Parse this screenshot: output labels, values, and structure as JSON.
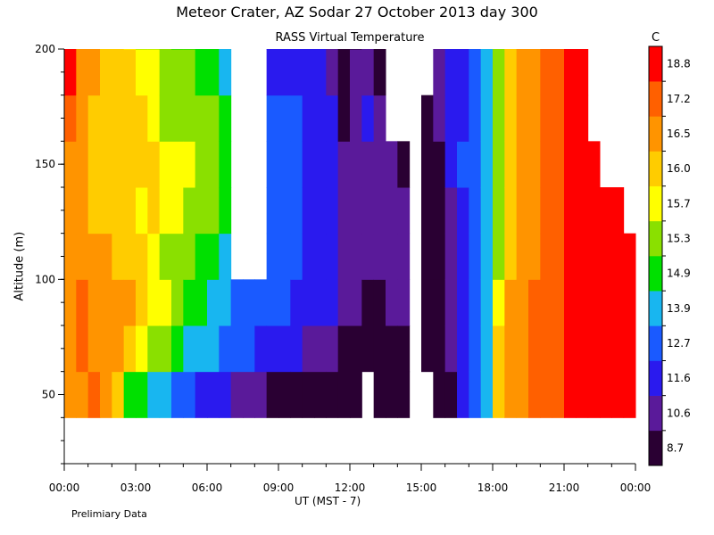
{
  "chart_data": {
    "type": "heatmap",
    "title": "Meteor Crater, AZ  Sodar  27 October 2013  day 300",
    "subtitle": "RASS Virtual Temperature",
    "xlabel": "UT  (MST - 7)",
    "ylabel": "Altitude (m)",
    "note": "Prelimiary Data",
    "colorbar_unit": "C",
    "xlim": [
      0,
      24
    ],
    "ylim": [
      20,
      200
    ],
    "x_ticks": [
      "00:00",
      "03:00",
      "06:00",
      "09:00",
      "12:00",
      "15:00",
      "18:00",
      "21:00",
      "00:00"
    ],
    "y_ticks": [
      50,
      100,
      150,
      200
    ],
    "colorbar": {
      "levels": [
        "8.7",
        "10.6",
        "11.6",
        "12.7",
        "13.9",
        "14.9",
        "15.3",
        "15.7",
        "16.0",
        "16.5",
        "17.2",
        "18.8"
      ],
      "colors": [
        "#2a0033",
        "#5a1a9a",
        "#2a1aee",
        "#1a5aff",
        "#18b6f0",
        "#00e000",
        "#8ae000",
        "#ffff00",
        "#ffcc00",
        "#ff9400",
        "#ff6000",
        "#ff0000"
      ]
    },
    "altitudes": [
      40,
      60,
      80,
      100,
      120,
      140,
      160,
      180,
      200
    ],
    "columns": [
      {
        "t": 0.0,
        "v": [
          17.0,
          17.0,
          17.0,
          16.8,
          16.8,
          16.8,
          17.2,
          18.8,
          18.8
        ]
      },
      {
        "t": 0.5,
        "v": [
          17.0,
          17.2,
          17.2,
          17.0,
          16.8,
          16.5,
          16.5,
          17.0,
          null
        ]
      },
      {
        "t": 1.0,
        "v": [
          17.2,
          17.0,
          16.8,
          16.5,
          16.3,
          16.2,
          16.0,
          16.5,
          16.5
        ]
      },
      {
        "t": 1.5,
        "v": [
          17.0,
          17.0,
          16.8,
          16.5,
          16.2,
          16.0,
          16.0,
          16.0,
          16.0
        ]
      },
      {
        "t": 2.0,
        "v": [
          16.0,
          16.8,
          16.5,
          16.3,
          16.2,
          16.0,
          16.0,
          16.0,
          16.0
        ]
      },
      {
        "t": 2.5,
        "v": [
          15.2,
          16.3,
          16.5,
          16.2,
          16.0,
          16.0,
          16.2,
          16.0,
          15.8
        ]
      },
      {
        "t": 3.0,
        "v": [
          15.0,
          15.8,
          16.2,
          16.0,
          15.9,
          16.0,
          16.0,
          15.9,
          15.6
        ]
      },
      {
        "t": 3.5,
        "v": [
          14.6,
          15.6,
          15.9,
          15.9,
          16.0,
          16.0,
          15.9,
          15.7,
          15.5
        ]
      },
      {
        "t": 4.0,
        "v": [
          14.2,
          15.4,
          15.7,
          15.6,
          15.9,
          15.9,
          15.6,
          15.4,
          15.3
        ]
      },
      {
        "t": 4.5,
        "v": [
          13.7,
          15.0,
          15.5,
          15.4,
          15.7,
          15.7,
          15.5,
          15.3,
          15.2
        ]
      },
      {
        "t": 5.0,
        "v": [
          12.9,
          14.6,
          15.2,
          15.3,
          15.6,
          15.7,
          15.6,
          15.4,
          15.0
        ]
      },
      {
        "t": 5.5,
        "v": [
          12.6,
          14.2,
          15.0,
          15.2,
          15.4,
          15.6,
          15.5,
          15.2,
          14.9
        ]
      },
      {
        "t": 6.0,
        "v": [
          12.4,
          13.9,
          14.6,
          15.2,
          15.3,
          15.5,
          15.3,
          15.0,
          15.0
        ]
      },
      {
        "t": 6.5,
        "v": [
          12.0,
          13.5,
          14.0,
          14.4,
          15.0,
          15.0,
          14.9,
          14.0,
          null
        ]
      },
      {
        "t": 7.0,
        "v": [
          11.2,
          12.9,
          13.3,
          null,
          null,
          null,
          null,
          null,
          null
        ]
      },
      {
        "t": 7.5,
        "v": [
          10.9,
          12.7,
          13.0,
          null,
          null,
          null,
          null,
          null,
          null
        ]
      },
      {
        "t": 8.0,
        "v": [
          10.6,
          12.4,
          12.9,
          null,
          null,
          null,
          null,
          null,
          null
        ]
      },
      {
        "t": 8.5,
        "v": [
          10.3,
          12.0,
          12.9,
          13.0,
          12.9,
          12.7,
          12.8,
          12.6,
          12.5
        ]
      },
      {
        "t": 9.0,
        "v": [
          10.0,
          11.8,
          12.7,
          12.9,
          12.8,
          13.5,
          12.8,
          12.6,
          12.5
        ]
      },
      {
        "t": 9.5,
        "v": [
          9.8,
          11.6,
          12.6,
          12.8,
          12.8,
          13.0,
          12.7,
          12.6,
          null
        ]
      },
      {
        "t": 10.0,
        "v": [
          9.8,
          11.2,
          12.2,
          12.5,
          12.6,
          12.5,
          12.5,
          12.4,
          12.3
        ]
      },
      {
        "t": 10.5,
        "v": [
          9.6,
          10.9,
          12.0,
          12.2,
          12.4,
          12.4,
          12.3,
          12.3,
          12.2
        ]
      },
      {
        "t": 11.0,
        "v": [
          9.5,
          10.6,
          11.6,
          11.8,
          12.0,
          11.9,
          11.7,
          11.5,
          11.0
        ]
      },
      {
        "t": 11.5,
        "v": [
          9.3,
          10.3,
          11.2,
          11.3,
          11.0,
          10.8,
          10.5,
          10.4,
          10.4
        ]
      },
      {
        "t": 12.0,
        "v": [
          9.2,
          10.0,
          10.8,
          11.4,
          11.2,
          11.0,
          10.7,
          10.6,
          10.5
        ]
      },
      {
        "t": 12.5,
        "v": [
          null,
          9.6,
          10.4,
          11.0,
          11.3,
          11.5,
          11.6,
          11.4,
          11.2
        ]
      },
      {
        "t": 13.0,
        "v": [
          9.5,
          9.7,
          10.5,
          10.8,
          11.1,
          11.0,
          10.6,
          10.5,
          null
        ]
      },
      {
        "t": 13.5,
        "v": [
          9.7,
          10.0,
          10.6,
          10.9,
          10.8,
          10.6,
          null,
          null,
          null
        ]
      },
      {
        "t": 14.0,
        "v": [
          9.8,
          10.2,
          10.8,
          11.0,
          10.7,
          10.5,
          null,
          null,
          null
        ]
      },
      {
        "t": 14.5,
        "v": [
          null,
          null,
          null,
          null,
          null,
          null,
          null,
          null,
          null
        ]
      },
      {
        "t": 15.0,
        "v": [
          null,
          9.4,
          9.5,
          9.6,
          9.8,
          9.9,
          10.2,
          null,
          null
        ]
      },
      {
        "t": 15.5,
        "v": [
          9.5,
          9.6,
          9.8,
          10.0,
          10.2,
          10.5,
          10.7,
          10.8,
          10.8
        ]
      },
      {
        "t": 16.0,
        "v": [
          10.4,
          10.8,
          11.0,
          11.2,
          11.4,
          11.6,
          11.6,
          11.6,
          11.6
        ]
      },
      {
        "t": 16.5,
        "v": [
          11.8,
          12.0,
          12.3,
          12.5,
          12.6,
          12.7,
          12.6,
          12.6,
          12.6
        ]
      },
      {
        "t": 17.0,
        "v": [
          13.0,
          13.2,
          13.4,
          13.5,
          13.6,
          13.7,
          13.6,
          13.5,
          13.5
        ]
      },
      {
        "t": 17.5,
        "v": [
          14.6,
          14.4,
          14.3,
          14.2,
          14.2,
          14.3,
          14.3,
          14.4,
          14.4
        ]
      },
      {
        "t": 18.0,
        "v": [
          16.2,
          16.0,
          15.8,
          15.6,
          15.5,
          15.5,
          15.5,
          15.6,
          15.6
        ]
      },
      {
        "t": 18.5,
        "v": [
          16.8,
          16.6,
          16.5,
          16.3,
          16.1,
          16.0,
          16.0,
          16.1,
          16.2
        ]
      },
      {
        "t": 19.0,
        "v": [
          17.1,
          17.0,
          16.8,
          16.7,
          16.6,
          16.6,
          16.7,
          16.8,
          16.8
        ]
      },
      {
        "t": 19.5,
        "v": [
          17.4,
          17.3,
          17.2,
          17.0,
          17.0,
          17.0,
          16.9,
          16.9,
          17.0
        ]
      },
      {
        "t": 20.0,
        "v": [
          17.8,
          17.8,
          17.8,
          17.6,
          17.4,
          17.4,
          17.3,
          17.4,
          17.6
        ]
      },
      {
        "t": 20.5,
        "v": [
          18.6,
          18.6,
          18.4,
          18.2,
          18.0,
          18.0,
          17.8,
          18.0,
          18.4
        ]
      },
      {
        "t": 21.0,
        "v": [
          19.0,
          19.0,
          19.0,
          19.0,
          19.0,
          19.0,
          19.0,
          19.0,
          19.0
        ]
      },
      {
        "t": 21.5,
        "v": [
          19.0,
          19.0,
          19.0,
          19.0,
          19.0,
          19.0,
          19.0,
          19.0,
          null
        ]
      },
      {
        "t": 22.0,
        "v": [
          19.0,
          19.0,
          19.0,
          19.0,
          19.0,
          19.0,
          null,
          null,
          null
        ]
      },
      {
        "t": 22.5,
        "v": [
          19.0,
          19.0,
          19.0,
          19.0,
          19.0,
          null,
          null,
          null,
          null
        ]
      },
      {
        "t": 23.0,
        "v": [
          19.0,
          19.0,
          19.0,
          19.0,
          19.0,
          null,
          null,
          null,
          null
        ]
      },
      {
        "t": 23.5,
        "v": [
          19.0,
          19.0,
          19.0,
          19.0,
          null,
          null,
          null,
          null,
          null
        ]
      }
    ]
  }
}
